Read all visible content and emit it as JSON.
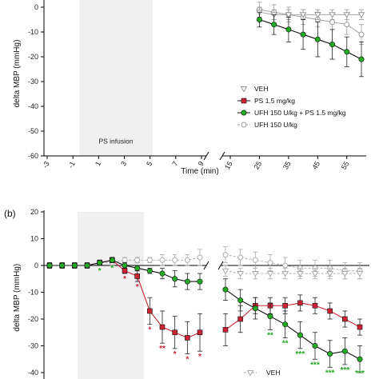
{
  "chart_data": [
    {
      "panel_label": "",
      "type": "line",
      "ylabel": "delta MBP (mmHg)",
      "xlabel": "Time (min)",
      "ylim": [
        -60,
        0
      ],
      "yticks": [
        "0",
        "-10",
        "-20",
        "-30",
        "-40",
        "-50",
        "-60"
      ],
      "xticks_left": [
        "-3",
        "-1",
        "1",
        "3",
        "5",
        "7",
        "9"
      ],
      "xticks_right": [
        "15",
        "25",
        "35",
        "45",
        "55"
      ],
      "shaded_region_label": "PS infusion",
      "shaded_x": [
        0,
        5
      ],
      "legend_position": "bottom-right",
      "legend": [
        "VEH",
        "PS 1.5 mg/kg",
        "UFH 150 U/kg + PS 1.5 mg/kg",
        "UFH 150 U/kg"
      ],
      "series": [
        {
          "name": "UFH 150 U/kg",
          "color": "#999999",
          "marker": "circle-open",
          "x": [
            25,
            30,
            35,
            40,
            45,
            50,
            55,
            60
          ],
          "y": [
            -1,
            -2,
            -3,
            -4,
            -5,
            -6,
            -7,
            -11
          ],
          "err": [
            3,
            3,
            3,
            3,
            3,
            3,
            4,
            4
          ]
        },
        {
          "name": "VEH",
          "color": "#999999",
          "marker": "triangle-open",
          "x": [
            25,
            30,
            35,
            40,
            45,
            50,
            55,
            60
          ],
          "y": [
            -2,
            -3,
            -3,
            -3,
            -3,
            -3,
            -3,
            -3
          ],
          "err": [
            2,
            2,
            2,
            2,
            2,
            2,
            2,
            2
          ]
        },
        {
          "name": "UFH 150 U/kg + PS 1.5 mg/kg",
          "color": "#22aa22",
          "marker": "circle-filled",
          "x": [
            25,
            30,
            35,
            40,
            45,
            50,
            55,
            60
          ],
          "y": [
            -5,
            -7,
            -9,
            -11,
            -13,
            -15,
            -18,
            -21
          ],
          "err": [
            3,
            4,
            5,
            6,
            7,
            6,
            6,
            7
          ]
        }
      ]
    },
    {
      "panel_label": "(b)",
      "type": "line",
      "ylabel": "delta MBP (mmHg)",
      "ylim": [
        -40,
        20
      ],
      "yticks": [
        "20",
        "10",
        "0",
        "-10",
        "-20",
        "-30",
        "-40"
      ],
      "shaded_x": [
        0,
        5
      ],
      "legend": [
        "VEH"
      ],
      "series": [
        {
          "name": "VEH",
          "color": "#aaaaaa",
          "marker": "circle-open",
          "dashed": true,
          "x": [
            -3,
            -2,
            -1,
            0,
            1,
            2,
            3,
            4,
            5,
            6,
            7,
            8,
            9,
            15,
            20,
            25,
            30,
            35,
            40,
            45,
            50,
            55,
            60
          ],
          "y": [
            0,
            0,
            0,
            0,
            1,
            1,
            2,
            2,
            2,
            2,
            2,
            2,
            3,
            4,
            3,
            2,
            1,
            0,
            -1,
            -1,
            -1,
            -2,
            -2
          ],
          "err": [
            1,
            1,
            1,
            1,
            1,
            1,
            1,
            1,
            1,
            2,
            2,
            2,
            3,
            3,
            3,
            3,
            3,
            3,
            3,
            3,
            3,
            3,
            3
          ]
        },
        {
          "name": "UFH 150 U/kg",
          "color": "#aaaaaa",
          "marker": "triangle-open",
          "dashed": true,
          "x": [
            15,
            20,
            25,
            30,
            35,
            40,
            45,
            50,
            55,
            60
          ],
          "y": [
            -2,
            -3,
            -3,
            -3,
            -3,
            -3,
            -3,
            -3,
            -3,
            -3
          ],
          "err": [
            2,
            2,
            2,
            2,
            2,
            2,
            2,
            2,
            2,
            2
          ]
        },
        {
          "name": "PS 1.5 mg/kg",
          "color": "#cc2233",
          "marker": "square-filled",
          "x": [
            -3,
            -2,
            -1,
            0,
            1,
            2,
            3,
            4,
            5,
            6,
            7,
            8,
            9,
            15,
            20,
            25,
            30,
            35,
            40,
            45,
            50,
            55,
            60
          ],
          "y": [
            0,
            0,
            0,
            0,
            1,
            2,
            -2,
            -4,
            -17,
            -23,
            -25,
            -27,
            -25,
            -24,
            -20,
            -15,
            -15,
            -15,
            -14,
            -15,
            -17,
            -20,
            -23
          ],
          "err": [
            1,
            1,
            1,
            1,
            1,
            1,
            1,
            2,
            5,
            6,
            6,
            6,
            7,
            6,
            5,
            3,
            3,
            3,
            3,
            3,
            3,
            3,
            3
          ]
        },
        {
          "name": "UFH 150 U/kg + PS 1.5 mg/kg",
          "color": "#22aa22",
          "marker": "circle-filled",
          "x": [
            -3,
            -2,
            -1,
            0,
            1,
            2,
            3,
            4,
            5,
            6,
            7,
            8,
            9,
            15,
            20,
            25,
            30,
            35,
            40,
            45,
            50,
            55,
            60
          ],
          "y": [
            0,
            0,
            0,
            0,
            1,
            2,
            0,
            -1,
            -2,
            -3,
            -5,
            -6,
            -6,
            -9,
            -13,
            -16,
            -19,
            -22,
            -26,
            -30,
            -33,
            -32,
            -35
          ],
          "err": [
            1,
            1,
            1,
            1,
            1,
            1,
            1,
            1,
            1,
            2,
            3,
            3,
            3,
            4,
            4,
            4,
            5,
            5,
            5,
            5,
            5,
            5,
            5
          ]
        }
      ],
      "annotations": [
        {
          "series": "UFH 150 U/kg + PS 1.5 mg/kg",
          "x": [
            1,
            2,
            30,
            35,
            40,
            45,
            50,
            55,
            60
          ],
          "labels": [
            "*",
            "*",
            "**",
            "**",
            "***",
            "***",
            "***",
            "***",
            "***"
          ]
        },
        {
          "series": "PS 1.5 mg/kg",
          "x": [
            3,
            4,
            5,
            6,
            7,
            8,
            9
          ],
          "labels": [
            "*",
            "*",
            "*",
            "**",
            "*",
            "*",
            "*"
          ]
        }
      ]
    }
  ]
}
